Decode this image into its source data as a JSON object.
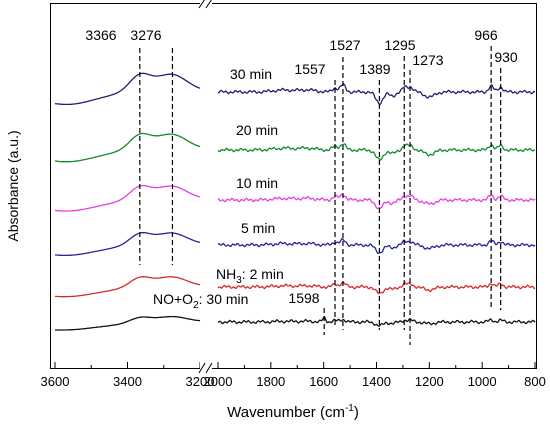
{
  "chart_data": {
    "type": "line",
    "xlabel_main": "Wavenumber (cm",
    "xlabel_sup": "-1",
    "xlabel_close": ")",
    "ylabel": "Absorbance (a.u.)",
    "x_direction": "decreasing",
    "axis_break": [
      3200,
      2000
    ],
    "xticks": [
      "3600",
      "3400",
      "3200",
      "2000",
      "1800",
      "1600",
      "1400",
      "1200",
      "1000",
      "800"
    ],
    "series_labels": [
      {
        "text": "30 min"
      },
      {
        "text": "20 min"
      },
      {
        "text": "10 min"
      },
      {
        "text": "5 min"
      },
      {
        "main": "NH",
        "sub": "3",
        "rest": ": 2 min"
      },
      {
        "main": "NO+O",
        "sub": "2",
        "rest": ": 30 min"
      }
    ],
    "series_colors": [
      "#1f1f6e",
      "#128a2a",
      "#e83de0",
      "#24249a",
      "#d42a2a",
      "#111111"
    ],
    "peak_labels": [
      "3366",
      "3276",
      "1557",
      "1527",
      "1389",
      "1295",
      "1273",
      "966",
      "930",
      "1598"
    ],
    "peak_positions_cm1": [
      3366,
      3276,
      1557,
      1527,
      1389,
      1295,
      1273,
      966,
      930,
      1598
    ],
    "grid": false,
    "legend": "none (labels placed next to curves)"
  }
}
